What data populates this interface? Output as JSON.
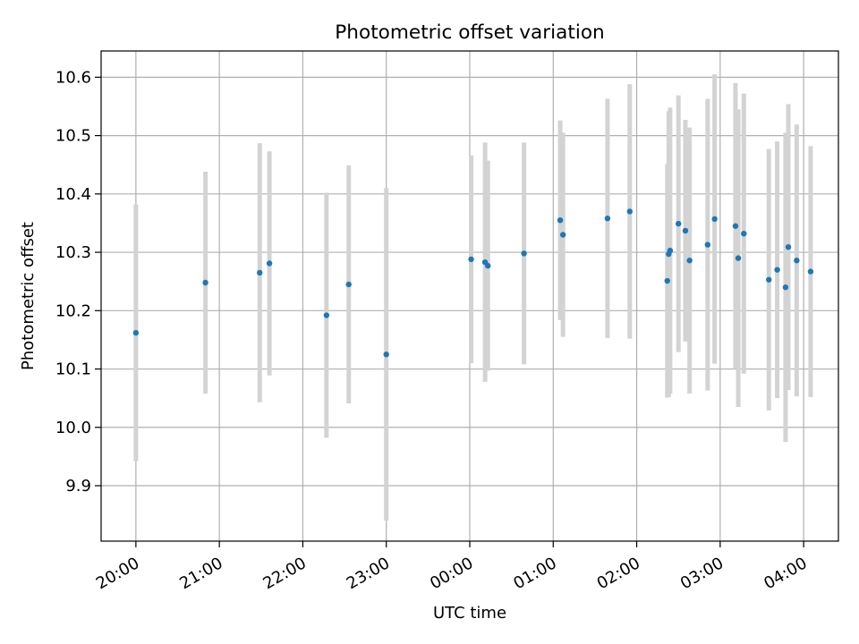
{
  "chart_data": {
    "type": "scatter",
    "title": "Photometric offset variation",
    "xlabel": "UTC time",
    "ylabel": "Photometric offset",
    "x_axis_kind": "time",
    "xlim": [
      "19:35",
      "04:25"
    ],
    "ylim": [
      9.805,
      10.645
    ],
    "grid": true,
    "x_ticks": [
      "20:00",
      "21:00",
      "22:00",
      "23:00",
      "00:00",
      "01:00",
      "02:00",
      "03:00",
      "04:00"
    ],
    "y_ticks": [
      "9.9",
      "10.0",
      "10.1",
      "10.2",
      "10.3",
      "10.4",
      "10.5",
      "10.6"
    ],
    "marker_color": "#1f77b4",
    "errorbar_color": "#d3d3d3",
    "series": [
      {
        "points": [
          {
            "x": "20:00",
            "y": 10.162,
            "err": 0.22
          },
          {
            "x": "20:50",
            "y": 10.248,
            "err": 0.19
          },
          {
            "x": "21:29",
            "y": 10.265,
            "err": 0.222
          },
          {
            "x": "21:36",
            "y": 10.281,
            "err": 0.192
          },
          {
            "x": "22:17",
            "y": 10.192,
            "err": 0.21
          },
          {
            "x": "22:33",
            "y": 10.245,
            "err": 0.204
          },
          {
            "x": "23:00",
            "y": 10.125,
            "err": 0.285
          },
          {
            "x": "00:01",
            "y": 10.288,
            "err": 0.178
          },
          {
            "x": "00:11",
            "y": 10.283,
            "err": 0.205
          },
          {
            "x": "00:13",
            "y": 10.277,
            "err": 0.18
          },
          {
            "x": "00:39",
            "y": 10.298,
            "err": 0.19
          },
          {
            "x": "01:05",
            "y": 10.355,
            "err": 0.171
          },
          {
            "x": "01:07",
            "y": 10.33,
            "err": 0.175
          },
          {
            "x": "01:39",
            "y": 10.358,
            "err": 0.205
          },
          {
            "x": "01:55",
            "y": 10.37,
            "err": 0.218
          },
          {
            "x": "02:22",
            "y": 10.251,
            "err": 0.2
          },
          {
            "x": "02:23",
            "y": 10.297,
            "err": 0.245
          },
          {
            "x": "02:24",
            "y": 10.303,
            "err": 0.245
          },
          {
            "x": "02:30",
            "y": 10.349,
            "err": 0.22
          },
          {
            "x": "02:35",
            "y": 10.337,
            "err": 0.19
          },
          {
            "x": "02:38",
            "y": 10.286,
            "err": 0.228
          },
          {
            "x": "02:51",
            "y": 10.313,
            "err": 0.25
          },
          {
            "x": "02:56",
            "y": 10.357,
            "err": 0.248
          },
          {
            "x": "03:11",
            "y": 10.345,
            "err": 0.245
          },
          {
            "x": "03:13",
            "y": 10.29,
            "err": 0.255
          },
          {
            "x": "03:17",
            "y": 10.332,
            "err": 0.24
          },
          {
            "x": "03:35",
            "y": 10.253,
            "err": 0.224
          },
          {
            "x": "03:41",
            "y": 10.27,
            "err": 0.22
          },
          {
            "x": "03:47",
            "y": 10.24,
            "err": 0.265
          },
          {
            "x": "03:49",
            "y": 10.309,
            "err": 0.245
          },
          {
            "x": "03:55",
            "y": 10.286,
            "err": 0.233
          },
          {
            "x": "04:05",
            "y": 10.267,
            "err": 0.215
          }
        ]
      }
    ]
  }
}
